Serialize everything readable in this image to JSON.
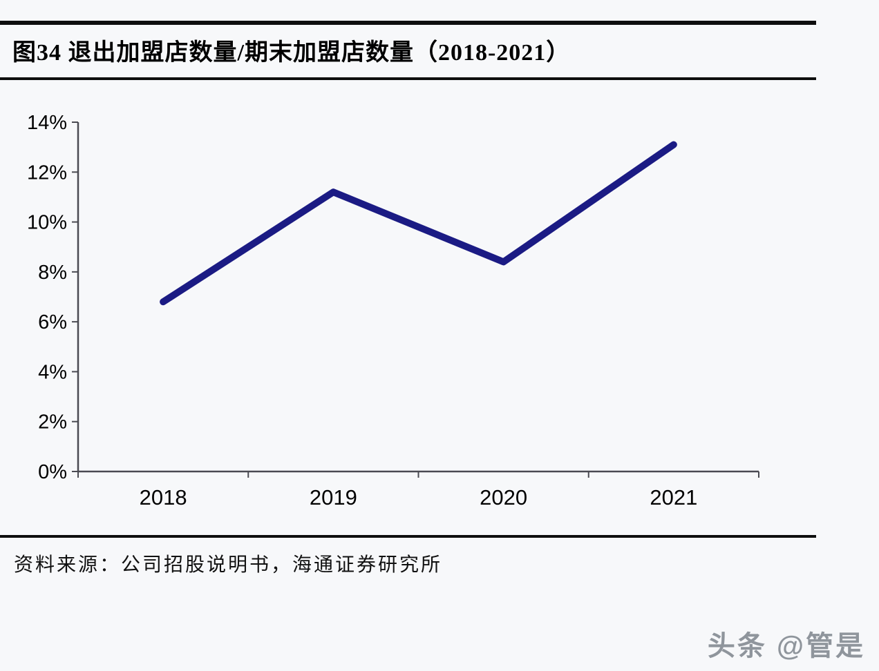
{
  "figure": {
    "title": "图34 退出加盟店数量/期末加盟店数量（2018-2021）",
    "source": "资料来源：公司招股说明书，海通证券研究所",
    "watermark": "头条 @管是"
  },
  "colors": {
    "line": "#1b1b84",
    "axis": "#4a4a52",
    "tick_text": "#000000",
    "rule": "#0e0e0e",
    "background": "#f7f8fa",
    "watermark": "#8f959c"
  },
  "chart_data": {
    "type": "line",
    "categories": [
      "2018",
      "2019",
      "2020",
      "2021"
    ],
    "series": [
      {
        "name": "退出加盟店数量/期末加盟店数量",
        "values": [
          6.8,
          11.2,
          8.4,
          13.1
        ]
      }
    ],
    "title": "图34 退出加盟店数量/期末加盟店数量（2018-2021）",
    "xlabel": "",
    "ylabel": "",
    "ylim": [
      0,
      14
    ],
    "ytick_step": 2,
    "ytick_suffix": "%",
    "grid": false,
    "legend": "none"
  }
}
